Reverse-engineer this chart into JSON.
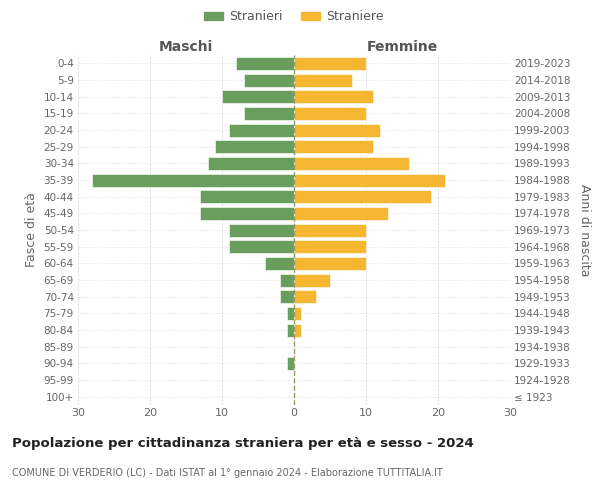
{
  "age_groups": [
    "100+",
    "95-99",
    "90-94",
    "85-89",
    "80-84",
    "75-79",
    "70-74",
    "65-69",
    "60-64",
    "55-59",
    "50-54",
    "45-49",
    "40-44",
    "35-39",
    "30-34",
    "25-29",
    "20-24",
    "15-19",
    "10-14",
    "5-9",
    "0-4"
  ],
  "birth_years": [
    "≤ 1923",
    "1924-1928",
    "1929-1933",
    "1934-1938",
    "1939-1943",
    "1944-1948",
    "1949-1953",
    "1954-1958",
    "1959-1963",
    "1964-1968",
    "1969-1973",
    "1974-1978",
    "1979-1983",
    "1984-1988",
    "1989-1993",
    "1994-1998",
    "1999-2003",
    "2004-2008",
    "2009-2013",
    "2014-2018",
    "2019-2023"
  ],
  "maschi": [
    0,
    0,
    1,
    0,
    1,
    1,
    2,
    2,
    4,
    9,
    9,
    13,
    13,
    28,
    12,
    11,
    9,
    7,
    10,
    7,
    8
  ],
  "femmine": [
    0,
    0,
    0,
    0,
    1,
    1,
    3,
    5,
    10,
    10,
    10,
    13,
    19,
    21,
    16,
    11,
    12,
    10,
    11,
    8,
    10
  ],
  "male_color": "#6a9e5e",
  "female_color": "#f5b731",
  "background_color": "#ffffff",
  "grid_color": "#cccccc",
  "title": "Popolazione per cittadinanza straniera per età e sesso - 2024",
  "subtitle": "COMUNE DI VERDERIO (LC) - Dati ISTAT al 1° gennaio 2024 - Elaborazione TUTTITALIA.IT",
  "left_label": "Maschi",
  "right_label": "Femmine",
  "ylabel_left": "Fasce di età",
  "ylabel_right": "Anni di nascita",
  "legend_maschi": "Stranieri",
  "legend_femmine": "Straniere",
  "xlim": 30
}
